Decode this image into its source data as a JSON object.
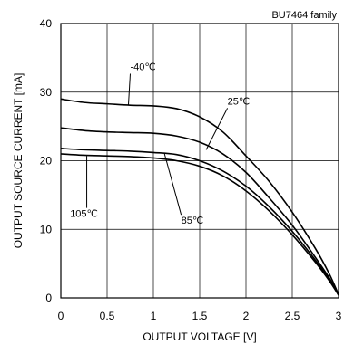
{
  "chart_data": {
    "type": "line",
    "annotation": "BU7464 family",
    "xlabel": "OUTPUT VOLTAGE [V]",
    "ylabel": "OUTPUT SOURCE CURRENT [mA]",
    "xlim": [
      0,
      3
    ],
    "ylim": [
      0,
      40
    ],
    "xticks": [
      0,
      0.5,
      1,
      1.5,
      2,
      2.5,
      3
    ],
    "xtick_labels": [
      "0",
      "0.5",
      "1",
      "1.5",
      "2",
      "2.5",
      "3"
    ],
    "yticks": [
      0,
      10,
      20,
      30,
      40
    ],
    "ytick_labels": [
      "0",
      "10",
      "20",
      "30",
      "40"
    ],
    "grid": true,
    "series": [
      {
        "name": "-40℃",
        "x": [
          0,
          0.25,
          0.5,
          0.75,
          1.0,
          1.25,
          1.5,
          1.75,
          2.0,
          2.25,
          2.5,
          2.75,
          2.9,
          3.0
        ],
        "y": [
          29,
          28.5,
          28.3,
          28.1,
          28.0,
          27.6,
          26.4,
          24.2,
          20.7,
          17.0,
          12.5,
          7.2,
          3.5,
          0.5
        ]
      },
      {
        "name": "25℃",
        "x": [
          0,
          0.25,
          0.5,
          0.75,
          1.0,
          1.25,
          1.5,
          1.75,
          2.0,
          2.25,
          2.5,
          2.75,
          2.9,
          3.0
        ],
        "y": [
          24.8,
          24.4,
          24.2,
          24.1,
          24.0,
          23.6,
          22.7,
          21.0,
          18.3,
          14.6,
          10.6,
          5.9,
          2.9,
          0.5
        ]
      },
      {
        "name": "85℃",
        "x": [
          0,
          0.25,
          0.5,
          0.75,
          1.0,
          1.25,
          1.5,
          1.75,
          2.0,
          2.25,
          2.5,
          2.75,
          2.9,
          3.0
        ],
        "y": [
          21.8,
          21.6,
          21.5,
          21.4,
          21.2,
          20.9,
          20.0,
          18.5,
          16.3,
          13.3,
          9.7,
          5.5,
          2.7,
          0.4
        ]
      },
      {
        "name": "105℃",
        "x": [
          0,
          0.25,
          0.5,
          0.75,
          1.0,
          1.25,
          1.5,
          1.75,
          2.0,
          2.25,
          2.5,
          2.75,
          2.9,
          3.0
        ],
        "y": [
          21.0,
          20.8,
          20.7,
          20.6,
          20.4,
          20.0,
          19.2,
          17.8,
          15.6,
          12.7,
          9.2,
          5.2,
          2.5,
          0.4
        ]
      }
    ],
    "labels": [
      {
        "text": "-40℃",
        "x": 0.75,
        "y": 33.2,
        "anchor_x": 0.73,
        "anchor_y": 28.1
      },
      {
        "text": "25℃",
        "x": 1.8,
        "y": 28.2,
        "anchor_x": 1.57,
        "anchor_y": 21.6
      },
      {
        "text": "85℃",
        "x": 1.3,
        "y": 10.8,
        "anchor_x": 1.12,
        "anchor_y": 21.0
      },
      {
        "text": "105℃",
        "x": 0.1,
        "y": 11.8,
        "anchor_x": 0.28,
        "anchor_y": 20.7
      }
    ]
  }
}
